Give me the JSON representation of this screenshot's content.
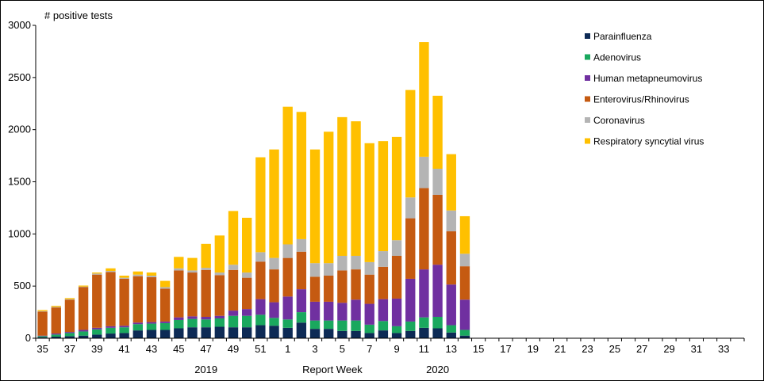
{
  "chart_data": {
    "type": "bar",
    "stacked": true,
    "ylabel": "# positive tests",
    "xlabel": "Report Week",
    "year_labels": [
      {
        "label": "2019",
        "at_week": "47"
      },
      {
        "label": "2020",
        "at_week": "12"
      }
    ],
    "ylim": [
      0,
      3000
    ],
    "yticks": [
      0,
      500,
      1000,
      1500,
      2000,
      2500,
      3000
    ],
    "grid": false,
    "legend_position": "right",
    "categories": [
      "35",
      "36",
      "37",
      "38",
      "39",
      "40",
      "41",
      "42",
      "43",
      "44",
      "45",
      "46",
      "47",
      "48",
      "49",
      "50",
      "51",
      "52",
      "1",
      "2",
      "3",
      "4",
      "5",
      "6",
      "7",
      "8",
      "9",
      "10",
      "11",
      "12",
      "13",
      "14",
      "15",
      "16",
      "17",
      "18",
      "19",
      "20",
      "21",
      "22",
      "23",
      "24",
      "25",
      "26",
      "27",
      "28",
      "29",
      "30",
      "31",
      "32",
      "33",
      "34"
    ],
    "tick_labels": [
      "35",
      "37",
      "39",
      "41",
      "43",
      "45",
      "47",
      "49",
      "51",
      "1",
      "3",
      "5",
      "7",
      "9",
      "11",
      "13",
      "15",
      "17",
      "19",
      "21",
      "23",
      "25",
      "27",
      "29",
      "31",
      "33"
    ],
    "series": [
      {
        "name": "Parainfluenza",
        "color": "#0d2a55",
        "values": [
          10,
          15,
          20,
          25,
          35,
          45,
          50,
          75,
          80,
          80,
          95,
          105,
          105,
          110,
          105,
          105,
          125,
          120,
          100,
          150,
          90,
          90,
          70,
          70,
          50,
          75,
          50,
          70,
          100,
          95,
          55,
          25,
          null,
          null,
          null,
          null,
          null,
          null,
          null,
          null,
          null,
          null,
          null,
          null,
          null,
          null,
          null,
          null,
          null,
          null,
          null,
          null
        ]
      },
      {
        "name": "Adenovirus",
        "color": "#1aa85e",
        "values": [
          10,
          20,
          30,
          40,
          50,
          55,
          55,
          60,
          60,
          65,
          80,
          80,
          75,
          80,
          110,
          110,
          100,
          75,
          80,
          100,
          80,
          80,
          100,
          100,
          80,
          90,
          65,
          90,
          100,
          110,
          70,
          55,
          null,
          null,
          null,
          null,
          null,
          null,
          null,
          null,
          null,
          null,
          null,
          null,
          null,
          null,
          null,
          null,
          null,
          null,
          null,
          null
        ]
      },
      {
        "name": "Human metapneumovirus",
        "color": "#7030a0",
        "values": [
          5,
          10,
          10,
          15,
          15,
          15,
          15,
          15,
          15,
          15,
          25,
          25,
          25,
          25,
          50,
          65,
          150,
          150,
          220,
          220,
          180,
          180,
          170,
          200,
          200,
          210,
          265,
          410,
          460,
          500,
          390,
          290,
          null,
          null,
          null,
          null,
          null,
          null,
          null,
          null,
          null,
          null,
          null,
          null,
          null,
          null,
          null,
          null,
          null,
          null,
          null,
          null
        ]
      },
      {
        "name": "Enterovirus/Rhinovirus",
        "color": "#c55a11",
        "values": [
          230,
          250,
          310,
          410,
          510,
          520,
          450,
          445,
          430,
          315,
          450,
          420,
          450,
          390,
          390,
          300,
          360,
          315,
          370,
          360,
          240,
          250,
          310,
          290,
          280,
          310,
          410,
          580,
          780,
          670,
          510,
          320,
          null,
          null,
          null,
          null,
          null,
          null,
          null,
          null,
          null,
          null,
          null,
          null,
          null,
          null,
          null,
          null,
          null,
          null,
          null,
          null
        ]
      },
      {
        "name": "Coronavirus",
        "color": "#b4b4b4",
        "values": [
          5,
          5,
          5,
          5,
          10,
          10,
          10,
          15,
          15,
          15,
          20,
          20,
          20,
          25,
          50,
          50,
          90,
          110,
          130,
          120,
          130,
          120,
          140,
          130,
          120,
          150,
          150,
          200,
          300,
          250,
          200,
          120,
          null,
          null,
          null,
          null,
          null,
          null,
          null,
          null,
          null,
          null,
          null,
          null,
          null,
          null,
          null,
          null,
          null,
          null,
          null,
          null
        ]
      },
      {
        "name": "Respiratory syncytial virus",
        "color": "#ffc000",
        "values": [
          10,
          10,
          10,
          10,
          10,
          25,
          20,
          30,
          30,
          60,
          110,
          120,
          230,
          355,
          515,
          525,
          910,
          1040,
          1320,
          1220,
          1090,
          1260,
          1330,
          1290,
          1140,
          1055,
          990,
          1030,
          1100,
          700,
          540,
          360,
          null,
          null,
          null,
          null,
          null,
          null,
          null,
          null,
          null,
          null,
          null,
          null,
          null,
          null,
          null,
          null,
          null,
          null,
          null,
          null
        ]
      }
    ]
  }
}
